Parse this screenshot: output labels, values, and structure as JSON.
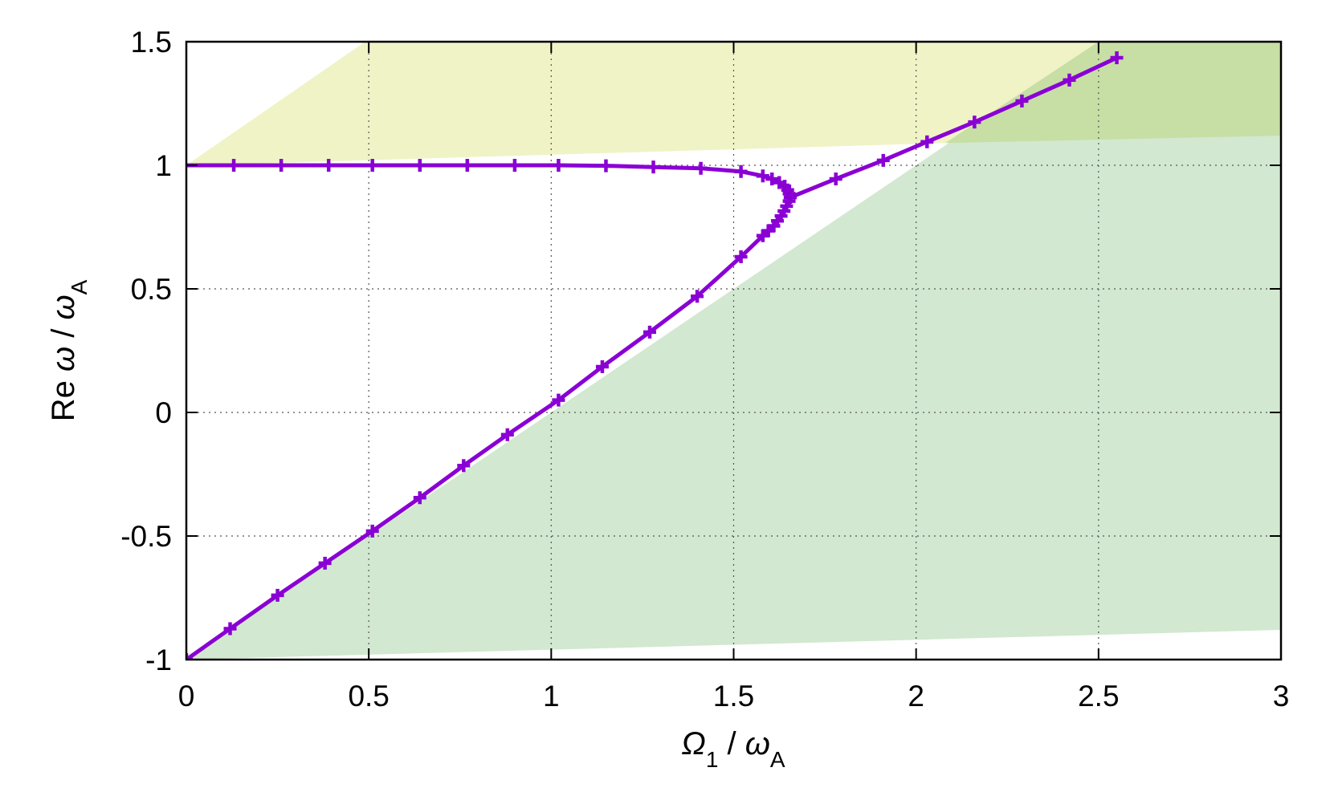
{
  "chart_data": {
    "type": "line",
    "xlabel": {
      "symbol": "Ω",
      "sub": "1",
      "sep": " / ",
      "denom": "ω",
      "denom_sub": "A"
    },
    "ylabel": {
      "prefix": "Re ",
      "symbol": "ω",
      "sep": " / ",
      "denom": "ω",
      "denom_sub": "A"
    },
    "xlim": [
      0,
      3
    ],
    "ylim": [
      -1,
      1.5
    ],
    "xticks": [
      {
        "value": 0,
        "label": "0"
      },
      {
        "value": 0.5,
        "label": "0.5"
      },
      {
        "value": 1,
        "label": "1"
      },
      {
        "value": 1.5,
        "label": "1.5"
      },
      {
        "value": 2,
        "label": "2"
      },
      {
        "value": 2.5,
        "label": "2.5"
      },
      {
        "value": 3,
        "label": "3"
      }
    ],
    "yticks": [
      {
        "value": -1,
        "label": "-1"
      },
      {
        "value": -0.5,
        "label": "-0.5"
      },
      {
        "value": 0,
        "label": "0"
      },
      {
        "value": 0.5,
        "label": "0.5"
      },
      {
        "value": 1,
        "label": "1"
      },
      {
        "value": 1.5,
        "label": "1.5"
      }
    ],
    "grid": true,
    "regions": [
      {
        "color": "#f0f3c6",
        "points": [
          [
            0,
            1.0
          ],
          [
            0.49,
            1.5
          ],
          [
            2.5,
            1.5
          ],
          [
            3,
            1.5
          ],
          [
            3,
            1.12
          ],
          [
            2.08,
            1.09
          ],
          [
            0.02,
            1.0
          ]
        ]
      },
      {
        "color": "#d2e8d0",
        "points": [
          [
            0,
            -1.0
          ],
          [
            2.5,
            1.5
          ],
          [
            3,
            1.5
          ],
          [
            3,
            -0.88
          ]
        ]
      },
      {
        "color": "#c7dea5",
        "points": [
          [
            2.08,
            1.09
          ],
          [
            2.5,
            1.5
          ],
          [
            3,
            1.5
          ],
          [
            3,
            1.12
          ]
        ]
      }
    ],
    "series": [
      {
        "color": "#8a00d4",
        "marker": "cross",
        "points": [
          [
            -0.01,
            1.0
          ],
          [
            0.13,
            1.0
          ],
          [
            0.26,
            1.0
          ],
          [
            0.39,
            1.0
          ],
          [
            0.51,
            1.0
          ],
          [
            0.64,
            1.0
          ],
          [
            0.77,
            1.0
          ],
          [
            0.9,
            1.0
          ],
          [
            1.02,
            1.0
          ],
          [
            1.15,
            0.998
          ],
          [
            1.28,
            0.993
          ],
          [
            1.41,
            0.988
          ],
          [
            1.52,
            0.975
          ],
          [
            1.58,
            0.957
          ],
          [
            1.605,
            0.945
          ],
          [
            1.625,
            0.93
          ],
          [
            1.64,
            0.915
          ],
          [
            1.648,
            0.9
          ],
          [
            1.652,
            0.885
          ],
          [
            1.655,
            0.87
          ],
          [
            1.652,
            0.855
          ],
          [
            1.645,
            0.835
          ],
          [
            1.638,
            0.815
          ],
          [
            1.63,
            0.795
          ],
          [
            1.62,
            0.775
          ],
          [
            1.61,
            0.755
          ],
          [
            1.595,
            0.735
          ],
          [
            1.58,
            0.715
          ],
          [
            1.52,
            0.63
          ],
          [
            1.4,
            0.47
          ],
          [
            1.27,
            0.325
          ],
          [
            1.14,
            0.185
          ],
          [
            1.02,
            0.05
          ],
          [
            0.88,
            -0.09
          ],
          [
            0.76,
            -0.215
          ],
          [
            0.64,
            -0.345
          ],
          [
            0.51,
            -0.48
          ],
          [
            0.38,
            -0.61
          ],
          [
            0.25,
            -0.74
          ],
          [
            0.12,
            -0.875
          ],
          [
            0.0,
            -1.0
          ]
        ]
      },
      {
        "color": "#8a00d4",
        "marker": "cross",
        "points": [
          [
            1.655,
            0.87
          ],
          [
            1.78,
            0.945
          ],
          [
            1.91,
            1.02
          ],
          [
            2.03,
            1.095
          ],
          [
            2.16,
            1.175
          ],
          [
            2.29,
            1.26
          ],
          [
            2.42,
            1.345
          ],
          [
            2.55,
            1.435
          ]
        ]
      }
    ]
  }
}
